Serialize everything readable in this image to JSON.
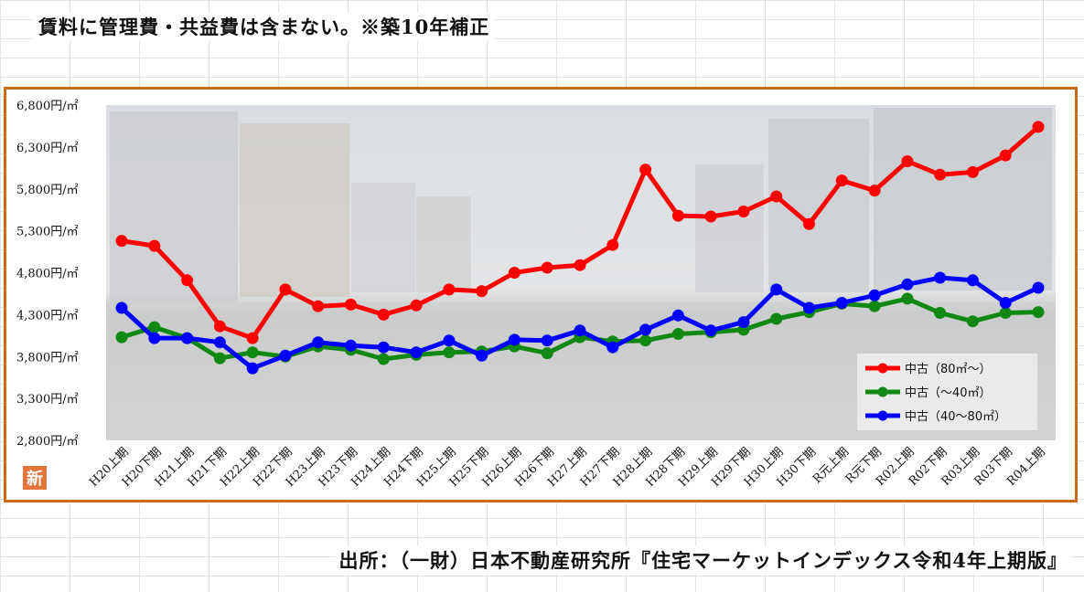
{
  "header": {
    "note": "賃料に管理費・共益費は含まない。※築10年補正"
  },
  "footer": {
    "source": "出所：（一財）日本不動産研究所『住宅マーケットインデックス令和4年上期版』"
  },
  "badge": {
    "icon": "logo-badge",
    "text": "新",
    "color": "#e2763a"
  },
  "chart_data": {
    "type": "line",
    "categories": [
      "H20上期",
      "H20下期",
      "H21上期",
      "H21下期",
      "H22上期",
      "H22下期",
      "H23上期",
      "H23下期",
      "H24上期",
      "H24下期",
      "H25上期",
      "H25下期",
      "H26上期",
      "H26下期",
      "H27上期",
      "H27下期",
      "H28上期",
      "H28下期",
      "H29上期",
      "H29下期",
      "H30上期",
      "H30下期",
      "R元上期",
      "R元下期",
      "R02上期",
      "R02下期",
      "R03上期",
      "R03下期",
      "R04上期"
    ],
    "yticks": [
      "6,800円/㎡",
      "6,300円/㎡",
      "5,800円/㎡",
      "5,300円/㎡",
      "4,800円/㎡",
      "4,300円/㎡",
      "3,800円/㎡",
      "3,300円/㎡",
      "2,800円/㎡"
    ],
    "ylim": [
      2800,
      6800
    ],
    "grid": false,
    "legend_position": "bottom-right",
    "series": [
      {
        "name": "中古（80㎡～）",
        "color": "#ff0000",
        "values": [
          5180,
          5120,
          4710,
          4160,
          4020,
          4600,
          4400,
          4420,
          4300,
          4410,
          4600,
          4580,
          4800,
          4860,
          4890,
          5130,
          6030,
          5480,
          5470,
          5530,
          5710,
          5380,
          5900,
          5780,
          6130,
          5970,
          6000,
          6200,
          6540
        ]
      },
      {
        "name": "中古（～40㎡）",
        "color": "#118811",
        "values": [
          4030,
          4150,
          4020,
          3780,
          3850,
          3800,
          3920,
          3880,
          3770,
          3820,
          3850,
          3860,
          3920,
          3840,
          4030,
          3980,
          3990,
          4070,
          4090,
          4120,
          4250,
          4330,
          4430,
          4400,
          4490,
          4320,
          4220,
          4320,
          4330
        ]
      },
      {
        "name": "中古（40～80㎡）",
        "color": "#0000ff",
        "values": [
          4380,
          4020,
          4020,
          3970,
          3660,
          3810,
          3970,
          3930,
          3910,
          3850,
          3990,
          3810,
          4000,
          3990,
          4110,
          3910,
          4120,
          4290,
          4110,
          4210,
          4600,
          4380,
          4440,
          4530,
          4660,
          4740,
          4710,
          4440,
          4620
        ]
      }
    ]
  }
}
